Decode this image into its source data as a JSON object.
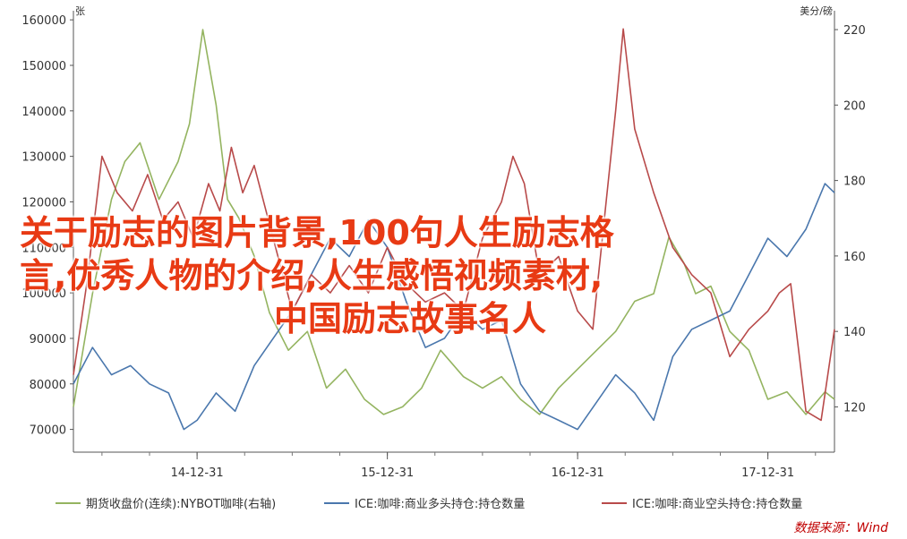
{
  "chart_data": {
    "type": "line",
    "left_axis": {
      "unit": "张",
      "range": [
        65000,
        162000
      ],
      "ticks": [
        "160000",
        "150000",
        "140000",
        "130000",
        "120000",
        "110000",
        "100000",
        "90000",
        "80000",
        "70000"
      ],
      "tick_values": [
        160000,
        150000,
        140000,
        130000,
        120000,
        110000,
        100000,
        90000,
        80000,
        70000
      ]
    },
    "right_axis": {
      "unit": "美分/磅",
      "range": [
        108,
        225
      ],
      "ticks": [
        "220",
        "200",
        "180",
        "160",
        "140",
        "120"
      ],
      "tick_values": [
        220,
        200,
        180,
        160,
        140,
        120
      ]
    },
    "x_axis": {
      "ticks": [
        "14-12-31",
        "15-12-31",
        "16-12-31",
        "17-12-31"
      ],
      "tick_values": [
        2014.0,
        2015.0,
        2016.0,
        2017.0
      ],
      "range": [
        2013.35,
        2017.35
      ]
    },
    "series": [
      {
        "name": "期货收盘价(连续):NYBOT咖啡(右轴)",
        "color": "#94b460",
        "axis": "right",
        "x": [
          2013.35,
          2013.45,
          2013.55,
          2013.62,
          2013.7,
          2013.8,
          2013.9,
          2013.96,
          2014.03,
          2014.1,
          2014.16,
          2014.22,
          2014.3,
          2014.38,
          2014.48,
          2014.58,
          2014.68,
          2014.78,
          2014.88,
          2014.98,
          2015.08,
          2015.18,
          2015.28,
          2015.4,
          2015.5,
          2015.6,
          2015.7,
          2015.8,
          2015.9,
          2016.0,
          2016.1,
          2016.2,
          2016.3,
          2016.4,
          2016.48,
          2016.56,
          2016.62,
          2016.7,
          2016.8,
          2016.9,
          2017.0,
          2017.1,
          2017.2,
          2017.3,
          2017.35
        ],
        "values": [
          120,
          150,
          175,
          185,
          190,
          175,
          185,
          195,
          220,
          200,
          175,
          170,
          160,
          145,
          135,
          140,
          125,
          130,
          122,
          118,
          120,
          125,
          135,
          128,
          125,
          128,
          122,
          118,
          125,
          130,
          135,
          140,
          148,
          150,
          165,
          158,
          150,
          152,
          140,
          135,
          122,
          124,
          118,
          124,
          122
        ]
      },
      {
        "name": "ICE:咖啡:商业多头持仓:持仓数量",
        "color": "#4a77ad",
        "axis": "left",
        "x": [
          2013.35,
          2013.45,
          2013.55,
          2013.65,
          2013.75,
          2013.85,
          2013.93,
          2014.0,
          2014.1,
          2014.2,
          2014.3,
          2014.4,
          2014.5,
          2014.6,
          2014.7,
          2014.8,
          2014.9,
          2015.0,
          2015.1,
          2015.2,
          2015.3,
          2015.4,
          2015.5,
          2015.6,
          2015.7,
          2015.8,
          2015.9,
          2016.0,
          2016.1,
          2016.2,
          2016.3,
          2016.4,
          2016.5,
          2016.6,
          2016.7,
          2016.8,
          2016.9,
          2017.0,
          2017.1,
          2017.2,
          2017.3,
          2017.35
        ],
        "values": [
          80000,
          88000,
          82000,
          84000,
          80000,
          78000,
          70000,
          72000,
          78000,
          74000,
          84000,
          90000,
          96000,
          104000,
          112000,
          108000,
          116000,
          110000,
          98000,
          88000,
          90000,
          96000,
          92000,
          94000,
          80000,
          74000,
          72000,
          70000,
          76000,
          82000,
          78000,
          72000,
          86000,
          92000,
          94000,
          96000,
          104000,
          112000,
          108000,
          114000,
          124000,
          122000
        ]
      },
      {
        "name": "ICE:咖啡:商业空头持仓:持仓数量",
        "color": "#b84a4a",
        "axis": "left",
        "x": [
          2013.35,
          2013.42,
          2013.5,
          2013.58,
          2013.66,
          2013.74,
          2013.82,
          2013.9,
          2013.98,
          2014.06,
          2014.12,
          2014.18,
          2014.24,
          2014.3,
          2014.4,
          2014.5,
          2014.6,
          2014.7,
          2014.8,
          2014.9,
          2015.0,
          2015.1,
          2015.2,
          2015.3,
          2015.4,
          2015.5,
          2015.6,
          2015.66,
          2015.72,
          2015.8,
          2015.9,
          2016.0,
          2016.08,
          2016.16,
          2016.2,
          2016.24,
          2016.3,
          2016.4,
          2016.5,
          2016.6,
          2016.7,
          2016.8,
          2016.9,
          2017.0,
          2017.06,
          2017.12,
          2017.2,
          2017.28,
          2017.35
        ],
        "values": [
          82000,
          102000,
          130000,
          122000,
          118000,
          126000,
          116000,
          120000,
          112000,
          124000,
          118000,
          132000,
          122000,
          128000,
          112000,
          96000,
          104000,
          100000,
          106000,
          100000,
          110000,
          102000,
          98000,
          100000,
          96000,
          112000,
          120000,
          130000,
          124000,
          104000,
          108000,
          96000,
          92000,
          124000,
          140000,
          158000,
          136000,
          122000,
          110000,
          104000,
          100000,
          86000,
          92000,
          96000,
          100000,
          102000,
          74000,
          72000,
          92000
        ]
      }
    ],
    "source_text": "数据来源：Wind",
    "overlay_text": [
      "关于励志的图片背景,100句人生励志格",
      "言,优秀人物的介绍,人生感悟视频素材,",
      "中国励志故事名人"
    ]
  }
}
